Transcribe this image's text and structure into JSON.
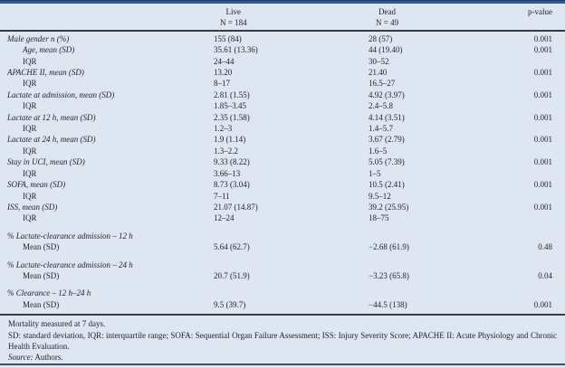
{
  "colors": {
    "background": "#dde6f1",
    "top_bar": "#2d5a9a",
    "top_bar_edge": "#1d3c6d",
    "rule_dark": "#3b3b45",
    "bottom_bar": "#414e66",
    "text": "#1e222e"
  },
  "table": {
    "header": {
      "live_label": "Live",
      "live_n": "N = 184",
      "dead_label": "Dead",
      "dead_n": "N = 49",
      "pvalue_label": "p-value"
    },
    "rows": [
      {
        "label": "Male gender n (%)",
        "live": "155 (84)",
        "dead": "28 (57)",
        "p": "0.001",
        "indent": false,
        "italic": true,
        "spacer": false
      },
      {
        "label": "Age, mean (SD)",
        "live": "35.61 (13.36)",
        "dead": "44 (19.40)",
        "p": "0.001",
        "indent": true,
        "italic": true,
        "spacer": false
      },
      {
        "label": "IQR",
        "live": "24–44",
        "dead": "30–52",
        "p": "",
        "indent": true,
        "italic": false,
        "spacer": false
      },
      {
        "label": "APACHE II, mean (SD)",
        "live": "13.20",
        "dead": "21.40",
        "p": "0.001",
        "indent": false,
        "italic": true,
        "spacer": false
      },
      {
        "label": "IQR",
        "live": "8–17",
        "dead": "16.5–27",
        "p": "",
        "indent": true,
        "italic": false,
        "spacer": false
      },
      {
        "label": "Lactate at admission, mean (SD)",
        "live": "2.81 (1.55)",
        "dead": "4.92 (3.97)",
        "p": "0.001",
        "indent": false,
        "italic": true,
        "spacer": false
      },
      {
        "label": "IQR",
        "live": "1.85–3.45",
        "dead": "2.4–5.8",
        "p": "",
        "indent": true,
        "italic": false,
        "spacer": false
      },
      {
        "label": "Lactate at 12 h, mean (SD)",
        "live": "2.35 (1.58)",
        "dead": "4.14 (3.51)",
        "p": "0.001",
        "indent": false,
        "italic": true,
        "spacer": false
      },
      {
        "label": "IQR",
        "live": "1.2–3",
        "dead": "1.4–5.7",
        "p": "",
        "indent": true,
        "italic": false,
        "spacer": false
      },
      {
        "label": "Lactate at 24 h, mean (SD)",
        "live": "1.9 (1.14)",
        "dead": "3.67 (2.79)",
        "p": "0.001",
        "indent": false,
        "italic": true,
        "spacer": false
      },
      {
        "label": "IQR",
        "live": "1.3–2.2",
        "dead": "1.6–5",
        "p": "",
        "indent": true,
        "italic": false,
        "spacer": false
      },
      {
        "label": "Stay in UCI, mean (SD)",
        "live": "9.33 (8.22)",
        "dead": "5.05 (7.39)",
        "p": "0.001",
        "indent": false,
        "italic": true,
        "spacer": false
      },
      {
        "label": "IQR",
        "live": "3.66–13",
        "dead": "1–5",
        "p": "",
        "indent": true,
        "italic": false,
        "spacer": false
      },
      {
        "label": "SOFA, mean (SD)",
        "live": "8.73 (3.04)",
        "dead": "10.5 (2.41)",
        "p": "0.001",
        "indent": false,
        "italic": true,
        "spacer": false
      },
      {
        "label": "IQR",
        "live": "7–11",
        "dead": "9.5–12",
        "p": "",
        "indent": true,
        "italic": false,
        "spacer": false
      },
      {
        "label": "ISS, mean (SD)",
        "live": "21.07 (14.87)",
        "dead": "39.2 (25.95)",
        "p": "0.001",
        "indent": false,
        "italic": true,
        "spacer": false
      },
      {
        "label": "IQR",
        "live": "12–24",
        "dead": "18–75",
        "p": "",
        "indent": true,
        "italic": false,
        "spacer": false
      },
      {
        "label": "% Lactate-clearance admission – 12 h",
        "live": "",
        "dead": "",
        "p": "",
        "indent": false,
        "italic": true,
        "spacer": true
      },
      {
        "label": "Mean (SD)",
        "live": "5.64 (62.7)",
        "dead": "−2.68 (61.9)",
        "p": "0.48",
        "indent": true,
        "italic": false,
        "spacer": false
      },
      {
        "label": "% Lactate-clearance admission – 24 h",
        "live": "",
        "dead": "",
        "p": "",
        "indent": false,
        "italic": true,
        "spacer": true
      },
      {
        "label": "Mean (SD)",
        "live": "20.7 (51.9)",
        "dead": "−3.23 (65.8)",
        "p": "0.04",
        "indent": true,
        "italic": false,
        "spacer": false
      },
      {
        "label": "% Clearance – 12 h–24 h",
        "live": "",
        "dead": "",
        "p": "",
        "indent": false,
        "italic": true,
        "spacer": true
      },
      {
        "label": "Mean (SD)",
        "live": "9.5 (39.7)",
        "dead": "−44.5 (138)",
        "p": "0.001",
        "indent": true,
        "italic": false,
        "spacer": false
      }
    ]
  },
  "footnotes": {
    "line1": "Mortality measured at 7 days.",
    "line2": "SD: standard deviation, IQR: interquartile range; SOFA: Sequential Organ Failure Assessment; ISS: Injury Severity Score; APACHE II: Acute Physiology and Chronic Health Evaluation.",
    "source_label": "Source:",
    "source_value": "Authors."
  }
}
